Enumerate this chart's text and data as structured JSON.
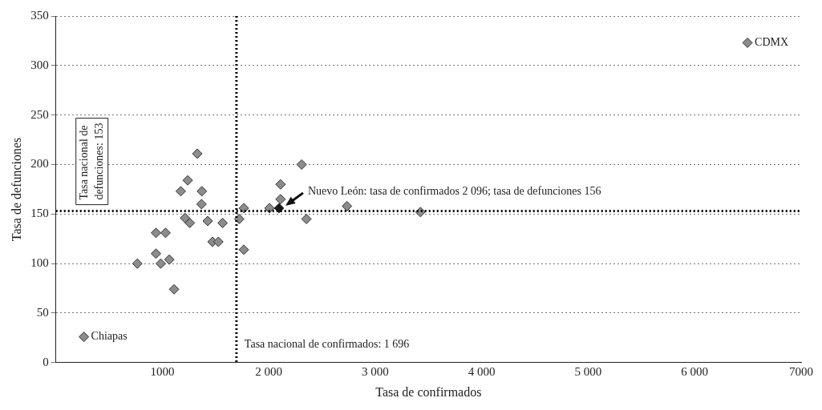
{
  "chart_data": {
    "type": "scatter",
    "xlabel": "Tasa de confirmados",
    "ylabel": "Tasa de defunciones",
    "x": [
      765,
      940,
      1030,
      940,
      985,
      1065,
      1110,
      1173,
      1238,
      1328,
      1213,
      1258,
      1371,
      1368,
      1426,
      1471,
      1526,
      1566,
      1722,
      1765,
      1765,
      2006,
      2096,
      2110,
      2110,
      2308,
      2353,
      2734,
      3424,
      6496,
      263
    ],
    "values": [
      100,
      131,
      131,
      110,
      100,
      104,
      74,
      173,
      184,
      211,
      146,
      141,
      173,
      160,
      143,
      122,
      122,
      141,
      145,
      156,
      114,
      156,
      156,
      180,
      165,
      200,
      145,
      158,
      152,
      323,
      26
    ],
    "colors": [
      "#8c8c8c",
      "#8c8c8c",
      "#8c8c8c",
      "#8c8c8c",
      "#8c8c8c",
      "#8c8c8c",
      "#8c8c8c",
      "#8c8c8c",
      "#8c8c8c",
      "#8c8c8c",
      "#8c8c8c",
      "#8c8c8c",
      "#8c8c8c",
      "#8c8c8c",
      "#8c8c8c",
      "#8c8c8c",
      "#8c8c8c",
      "#8c8c8c",
      "#8c8c8c",
      "#8c8c8c",
      "#8c8c8c",
      "#8c8c8c",
      "#1a1a1a",
      "#8c8c8c",
      "#8c8c8c",
      "#8c8c8c",
      "#8c8c8c",
      "#8c8c8c",
      "#8c8c8c",
      "#8c8c8c",
      "#8c8c8c"
    ],
    "marker": "diamond",
    "grid": "y",
    "legend": false,
    "xlim": [
      0,
      7000
    ],
    "xticks": [
      1000,
      {
        "value": 2000,
        "label": "2 000"
      },
      {
        "value": 3000,
        "label": "3 000"
      },
      {
        "value": 4000,
        "label": "4 000"
      },
      {
        "value": 5000,
        "label": "5 000"
      },
      {
        "value": 6000,
        "label": "6 000"
      },
      7000
    ],
    "ylim": [
      0,
      350
    ],
    "yticks": [
      0,
      50,
      100,
      150,
      200,
      250,
      300,
      350
    ],
    "ref_lines": [
      {
        "axis": "x",
        "value": 1696,
        "label": "Tasa nacional de confirmados: 1 696",
        "color": "#000000",
        "line_style": "dotted"
      },
      {
        "axis": "y",
        "value": 153,
        "label": "Tasa nacional de defunciones: 153",
        "color": "#000000",
        "line_style": "dotted"
      }
    ],
    "annotations": [
      {
        "text": "CDMX",
        "x": 6496,
        "y": 323
      },
      {
        "text": "Chiapas",
        "x": 263,
        "y": 26
      },
      {
        "text": "Nuevo León: tasa de confirmados 2 096; tasa de defunciones 156",
        "x": 2096,
        "y": 156
      }
    ]
  }
}
